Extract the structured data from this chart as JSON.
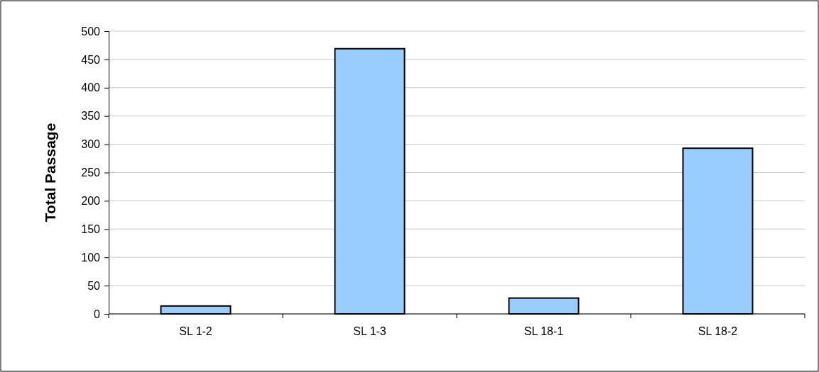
{
  "chart_data": {
    "type": "bar",
    "ylabel": "Total Passage",
    "categories": [
      "SL 1-2",
      "SL 1-3",
      "SL 18-1",
      "SL 18-2"
    ],
    "values": [
      14,
      469,
      28,
      293
    ],
    "color": "#99ccff",
    "ylim": [
      0,
      500
    ],
    "yticks": [
      0,
      50,
      100,
      150,
      200,
      250,
      300,
      350,
      400,
      450,
      500
    ],
    "grid": "y"
  }
}
